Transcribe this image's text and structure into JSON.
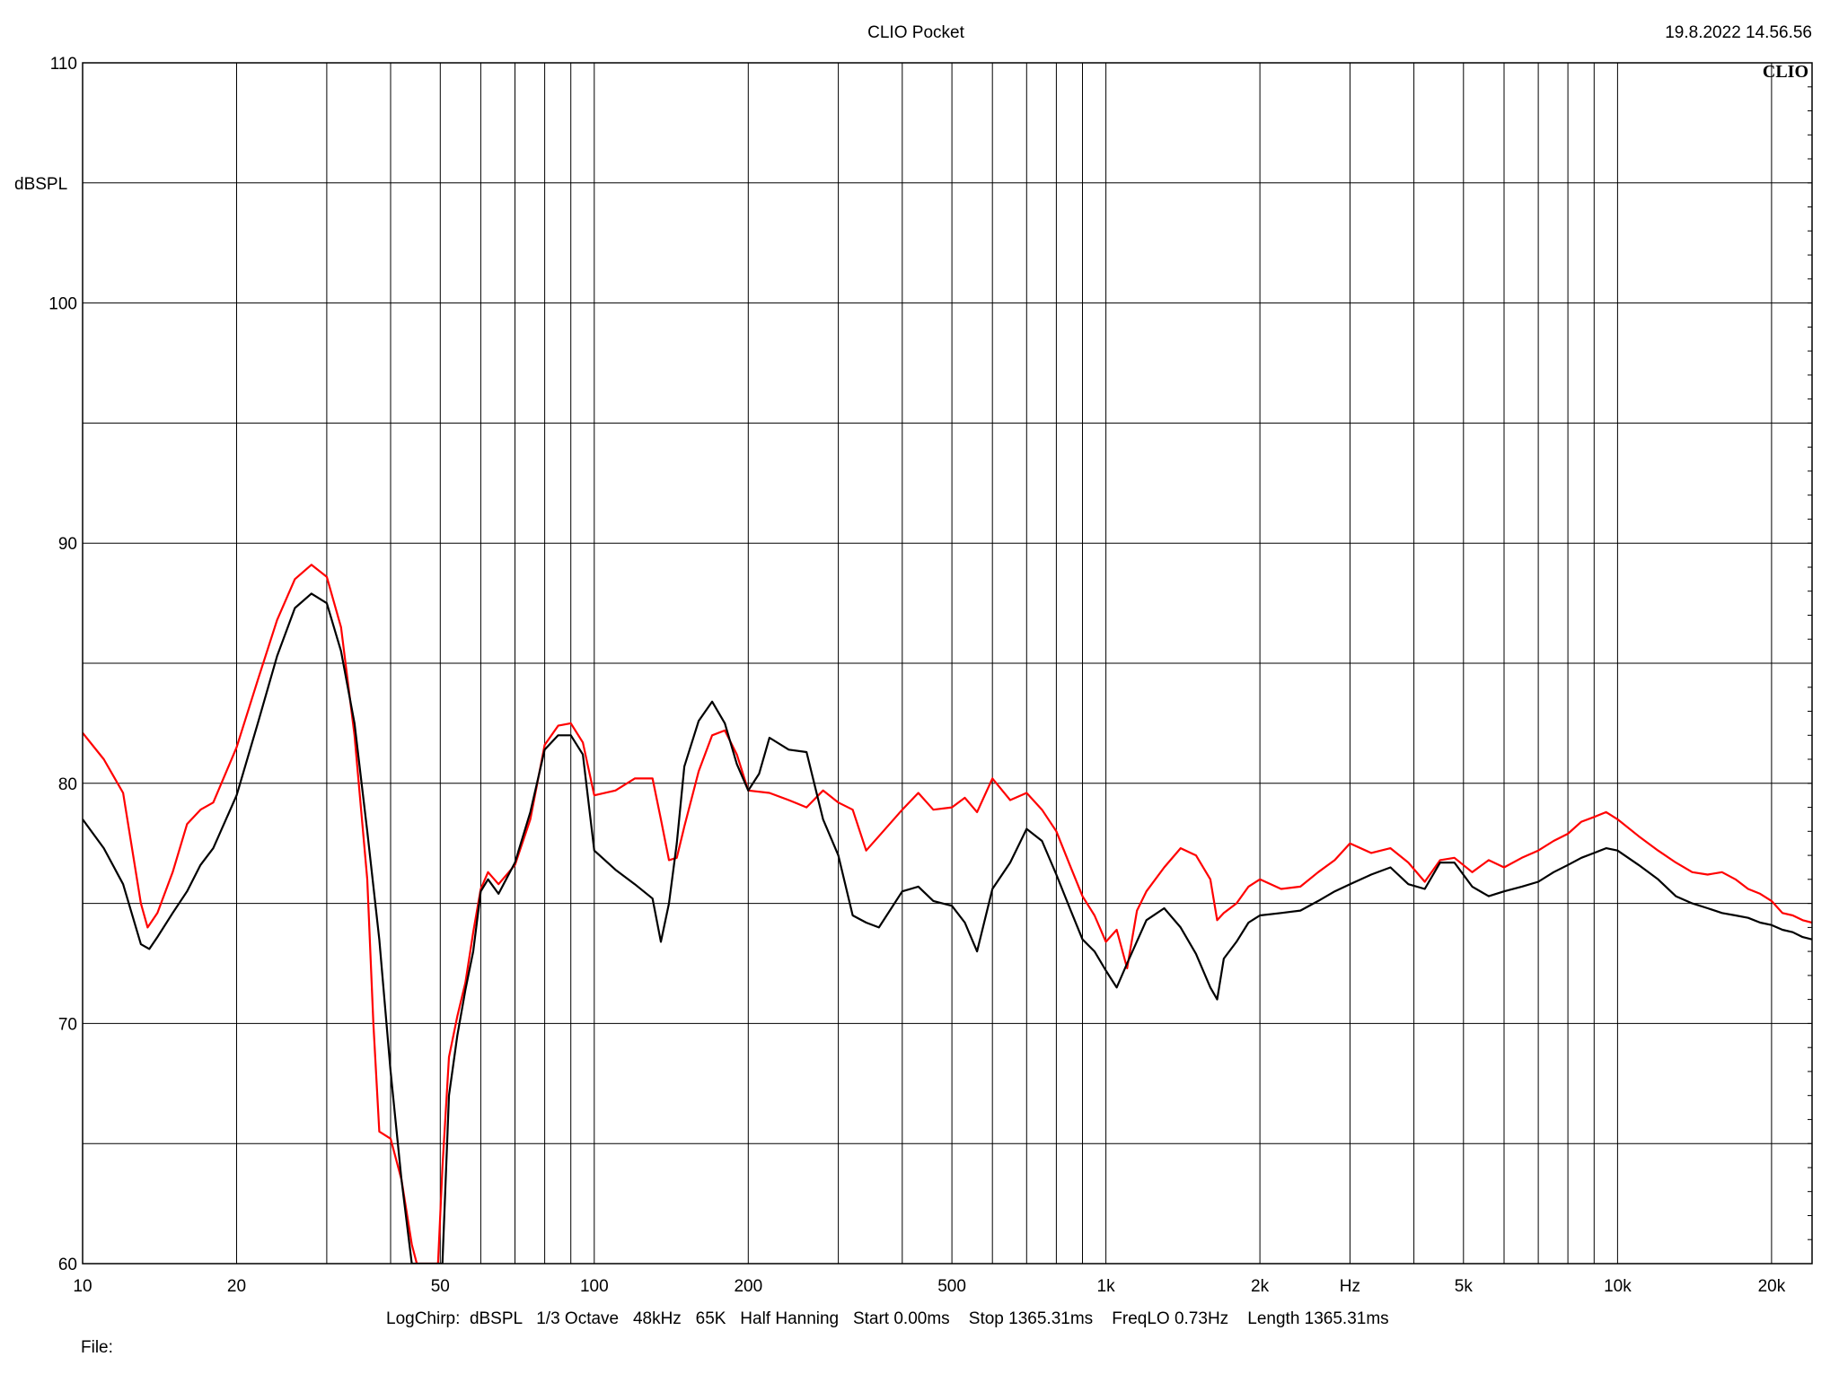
{
  "header": {
    "title": "CLIO Pocket",
    "timestamp": "19.8.2022 14.56.56",
    "logo": "CLIO"
  },
  "footer": {
    "settings": "LogChirp:  dBSPL   1/3 Octave   48kHz   65K   Half Hanning   Start 0.00ms    Stop 1365.31ms    FreqLO 0.73Hz    Length 1365.31ms",
    "file_label": "File:"
  },
  "chart_data": {
    "type": "line",
    "title": "CLIO Pocket",
    "xlabel": "Hz",
    "ylabel": "dBSPL",
    "x_scale": "log",
    "xlim": [
      10,
      24000
    ],
    "ylim": [
      60,
      110
    ],
    "grid": true,
    "x_ticks": [
      {
        "value": 10,
        "label": "10"
      },
      {
        "value": 20,
        "label": "20"
      },
      {
        "value": 50,
        "label": "50"
      },
      {
        "value": 100,
        "label": "100"
      },
      {
        "value": 200,
        "label": "200"
      },
      {
        "value": 500,
        "label": "500"
      },
      {
        "value": 1000,
        "label": "1k"
      },
      {
        "value": 2000,
        "label": "2k"
      },
      {
        "value": 5000,
        "label": "5k"
      },
      {
        "value": 10000,
        "label": "10k"
      },
      {
        "value": 20000,
        "label": "20k"
      }
    ],
    "x_unit_label": {
      "value": 3000,
      "label": "Hz"
    },
    "y_ticks": [
      {
        "value": 60,
        "label": "60"
      },
      {
        "value": 70,
        "label": "70"
      },
      {
        "value": 80,
        "label": "80"
      },
      {
        "value": 90,
        "label": "90"
      },
      {
        "value": 100,
        "label": "100"
      },
      {
        "value": 110,
        "label": "110"
      }
    ],
    "series": [
      {
        "color": "#ff0000",
        "points": [
          [
            10,
            82.1
          ],
          [
            11,
            81.0
          ],
          [
            12,
            79.6
          ],
          [
            13,
            75.0
          ],
          [
            13.4,
            74.0
          ],
          [
            14,
            74.6
          ],
          [
            15,
            76.3
          ],
          [
            16,
            78.3
          ],
          [
            17,
            78.9
          ],
          [
            18,
            79.2
          ],
          [
            20,
            81.5
          ],
          [
            22,
            84.3
          ],
          [
            24,
            86.8
          ],
          [
            26,
            88.5
          ],
          [
            28,
            89.1
          ],
          [
            30,
            88.6
          ],
          [
            32,
            86.5
          ],
          [
            34,
            82.0
          ],
          [
            36,
            76.0
          ],
          [
            37,
            70.0
          ],
          [
            38,
            65.5
          ],
          [
            40,
            65.2
          ],
          [
            42,
            63.5
          ],
          [
            44,
            60.8
          ],
          [
            45,
            60.0
          ],
          [
            49.5,
            60.0
          ],
          [
            50.5,
            64.0
          ],
          [
            52,
            68.6
          ],
          [
            54,
            70.3
          ],
          [
            56,
            71.7
          ],
          [
            58,
            73.8
          ],
          [
            60,
            75.6
          ],
          [
            62,
            76.3
          ],
          [
            65,
            75.8
          ],
          [
            70,
            76.6
          ],
          [
            75,
            78.5
          ],
          [
            80,
            81.6
          ],
          [
            85,
            82.4
          ],
          [
            90,
            82.5
          ],
          [
            95,
            81.7
          ],
          [
            100,
            79.5
          ],
          [
            110,
            79.7
          ],
          [
            120,
            80.2
          ],
          [
            130,
            80.2
          ],
          [
            135,
            78.5
          ],
          [
            140,
            76.8
          ],
          [
            145,
            76.9
          ],
          [
            150,
            78.2
          ],
          [
            160,
            80.5
          ],
          [
            170,
            82.0
          ],
          [
            180,
            82.2
          ],
          [
            190,
            81.2
          ],
          [
            200,
            79.7
          ],
          [
            220,
            79.6
          ],
          [
            240,
            79.3
          ],
          [
            260,
            79.0
          ],
          [
            280,
            79.7
          ],
          [
            300,
            79.2
          ],
          [
            320,
            78.9
          ],
          [
            340,
            77.2
          ],
          [
            360,
            77.8
          ],
          [
            400,
            78.9
          ],
          [
            430,
            79.6
          ],
          [
            460,
            78.9
          ],
          [
            500,
            79.0
          ],
          [
            530,
            79.4
          ],
          [
            560,
            78.8
          ],
          [
            600,
            80.2
          ],
          [
            650,
            79.3
          ],
          [
            700,
            79.6
          ],
          [
            750,
            78.9
          ],
          [
            800,
            78.0
          ],
          [
            850,
            76.6
          ],
          [
            900,
            75.3
          ],
          [
            950,
            74.5
          ],
          [
            1000,
            73.4
          ],
          [
            1050,
            73.9
          ],
          [
            1100,
            72.3
          ],
          [
            1150,
            74.7
          ],
          [
            1200,
            75.5
          ],
          [
            1300,
            76.5
          ],
          [
            1400,
            77.3
          ],
          [
            1500,
            77.0
          ],
          [
            1600,
            76.0
          ],
          [
            1650,
            74.3
          ],
          [
            1700,
            74.6
          ],
          [
            1800,
            75.0
          ],
          [
            1900,
            75.7
          ],
          [
            2000,
            76.0
          ],
          [
            2200,
            75.6
          ],
          [
            2400,
            75.7
          ],
          [
            2600,
            76.3
          ],
          [
            2800,
            76.8
          ],
          [
            3000,
            77.5
          ],
          [
            3300,
            77.1
          ],
          [
            3600,
            77.3
          ],
          [
            3900,
            76.7
          ],
          [
            4200,
            75.9
          ],
          [
            4500,
            76.8
          ],
          [
            4800,
            76.9
          ],
          [
            5200,
            76.3
          ],
          [
            5600,
            76.8
          ],
          [
            6000,
            76.5
          ],
          [
            6500,
            76.9
          ],
          [
            7000,
            77.2
          ],
          [
            7500,
            77.6
          ],
          [
            8000,
            77.9
          ],
          [
            8500,
            78.4
          ],
          [
            9000,
            78.6
          ],
          [
            9500,
            78.8
          ],
          [
            10000,
            78.5
          ],
          [
            11000,
            77.8
          ],
          [
            12000,
            77.2
          ],
          [
            13000,
            76.7
          ],
          [
            14000,
            76.3
          ],
          [
            15000,
            76.2
          ],
          [
            16000,
            76.3
          ],
          [
            17000,
            76.0
          ],
          [
            18000,
            75.6
          ],
          [
            19000,
            75.4
          ],
          [
            20000,
            75.1
          ],
          [
            21000,
            74.6
          ],
          [
            22000,
            74.5
          ],
          [
            23000,
            74.3
          ],
          [
            24000,
            74.2
          ]
        ]
      },
      {
        "color": "#000000",
        "points": [
          [
            10,
            78.5
          ],
          [
            11,
            77.3
          ],
          [
            12,
            75.8
          ],
          [
            13,
            73.3
          ],
          [
            13.5,
            73.1
          ],
          [
            14,
            73.6
          ],
          [
            15,
            74.6
          ],
          [
            16,
            75.5
          ],
          [
            17,
            76.6
          ],
          [
            18,
            77.3
          ],
          [
            20,
            79.5
          ],
          [
            22,
            82.5
          ],
          [
            24,
            85.3
          ],
          [
            26,
            87.3
          ],
          [
            28,
            87.9
          ],
          [
            30,
            87.5
          ],
          [
            32,
            85.5
          ],
          [
            34,
            82.5
          ],
          [
            36,
            78.0
          ],
          [
            38,
            73.5
          ],
          [
            40,
            68.0
          ],
          [
            42,
            63.5
          ],
          [
            44,
            60.0
          ],
          [
            50.5,
            60.0
          ],
          [
            52,
            67.0
          ],
          [
            54,
            69.5
          ],
          [
            56,
            71.4
          ],
          [
            58,
            73.0
          ],
          [
            60,
            75.5
          ],
          [
            62,
            76.0
          ],
          [
            65,
            75.4
          ],
          [
            70,
            76.7
          ],
          [
            75,
            78.8
          ],
          [
            80,
            81.4
          ],
          [
            85,
            82.0
          ],
          [
            90,
            82.0
          ],
          [
            95,
            81.2
          ],
          [
            100,
            77.2
          ],
          [
            110,
            76.4
          ],
          [
            120,
            75.8
          ],
          [
            130,
            75.2
          ],
          [
            135,
            73.4
          ],
          [
            140,
            75.0
          ],
          [
            145,
            77.5
          ],
          [
            150,
            80.7
          ],
          [
            160,
            82.6
          ],
          [
            170,
            83.4
          ],
          [
            180,
            82.5
          ],
          [
            190,
            80.8
          ],
          [
            200,
            79.7
          ],
          [
            210,
            80.4
          ],
          [
            220,
            81.9
          ],
          [
            240,
            81.4
          ],
          [
            260,
            81.3
          ],
          [
            280,
            78.5
          ],
          [
            300,
            77.0
          ],
          [
            320,
            74.5
          ],
          [
            340,
            74.2
          ],
          [
            360,
            74.0
          ],
          [
            400,
            75.5
          ],
          [
            430,
            75.7
          ],
          [
            460,
            75.1
          ],
          [
            500,
            74.9
          ],
          [
            530,
            74.2
          ],
          [
            560,
            73.0
          ],
          [
            600,
            75.6
          ],
          [
            650,
            76.7
          ],
          [
            700,
            78.1
          ],
          [
            750,
            77.6
          ],
          [
            800,
            76.2
          ],
          [
            850,
            74.8
          ],
          [
            900,
            73.5
          ],
          [
            950,
            73.0
          ],
          [
            1000,
            72.2
          ],
          [
            1050,
            71.5
          ],
          [
            1100,
            72.5
          ],
          [
            1200,
            74.3
          ],
          [
            1300,
            74.8
          ],
          [
            1400,
            74.0
          ],
          [
            1500,
            72.9
          ],
          [
            1600,
            71.5
          ],
          [
            1650,
            71.0
          ],
          [
            1700,
            72.7
          ],
          [
            1800,
            73.4
          ],
          [
            1900,
            74.2
          ],
          [
            2000,
            74.5
          ],
          [
            2200,
            74.6
          ],
          [
            2400,
            74.7
          ],
          [
            2600,
            75.1
          ],
          [
            2800,
            75.5
          ],
          [
            3000,
            75.8
          ],
          [
            3300,
            76.2
          ],
          [
            3600,
            76.5
          ],
          [
            3900,
            75.8
          ],
          [
            4200,
            75.6
          ],
          [
            4500,
            76.7
          ],
          [
            4800,
            76.7
          ],
          [
            5200,
            75.7
          ],
          [
            5600,
            75.3
          ],
          [
            6000,
            75.5
          ],
          [
            6500,
            75.7
          ],
          [
            7000,
            75.9
          ],
          [
            7500,
            76.3
          ],
          [
            8000,
            76.6
          ],
          [
            8500,
            76.9
          ],
          [
            9000,
            77.1
          ],
          [
            9500,
            77.3
          ],
          [
            10000,
            77.2
          ],
          [
            11000,
            76.6
          ],
          [
            12000,
            76.0
          ],
          [
            13000,
            75.3
          ],
          [
            14000,
            75.0
          ],
          [
            15000,
            74.8
          ],
          [
            16000,
            74.6
          ],
          [
            17000,
            74.5
          ],
          [
            18000,
            74.4
          ],
          [
            19000,
            74.2
          ],
          [
            20000,
            74.1
          ],
          [
            21000,
            73.9
          ],
          [
            22000,
            73.8
          ],
          [
            23000,
            73.6
          ],
          [
            24000,
            73.5
          ]
        ]
      }
    ]
  }
}
